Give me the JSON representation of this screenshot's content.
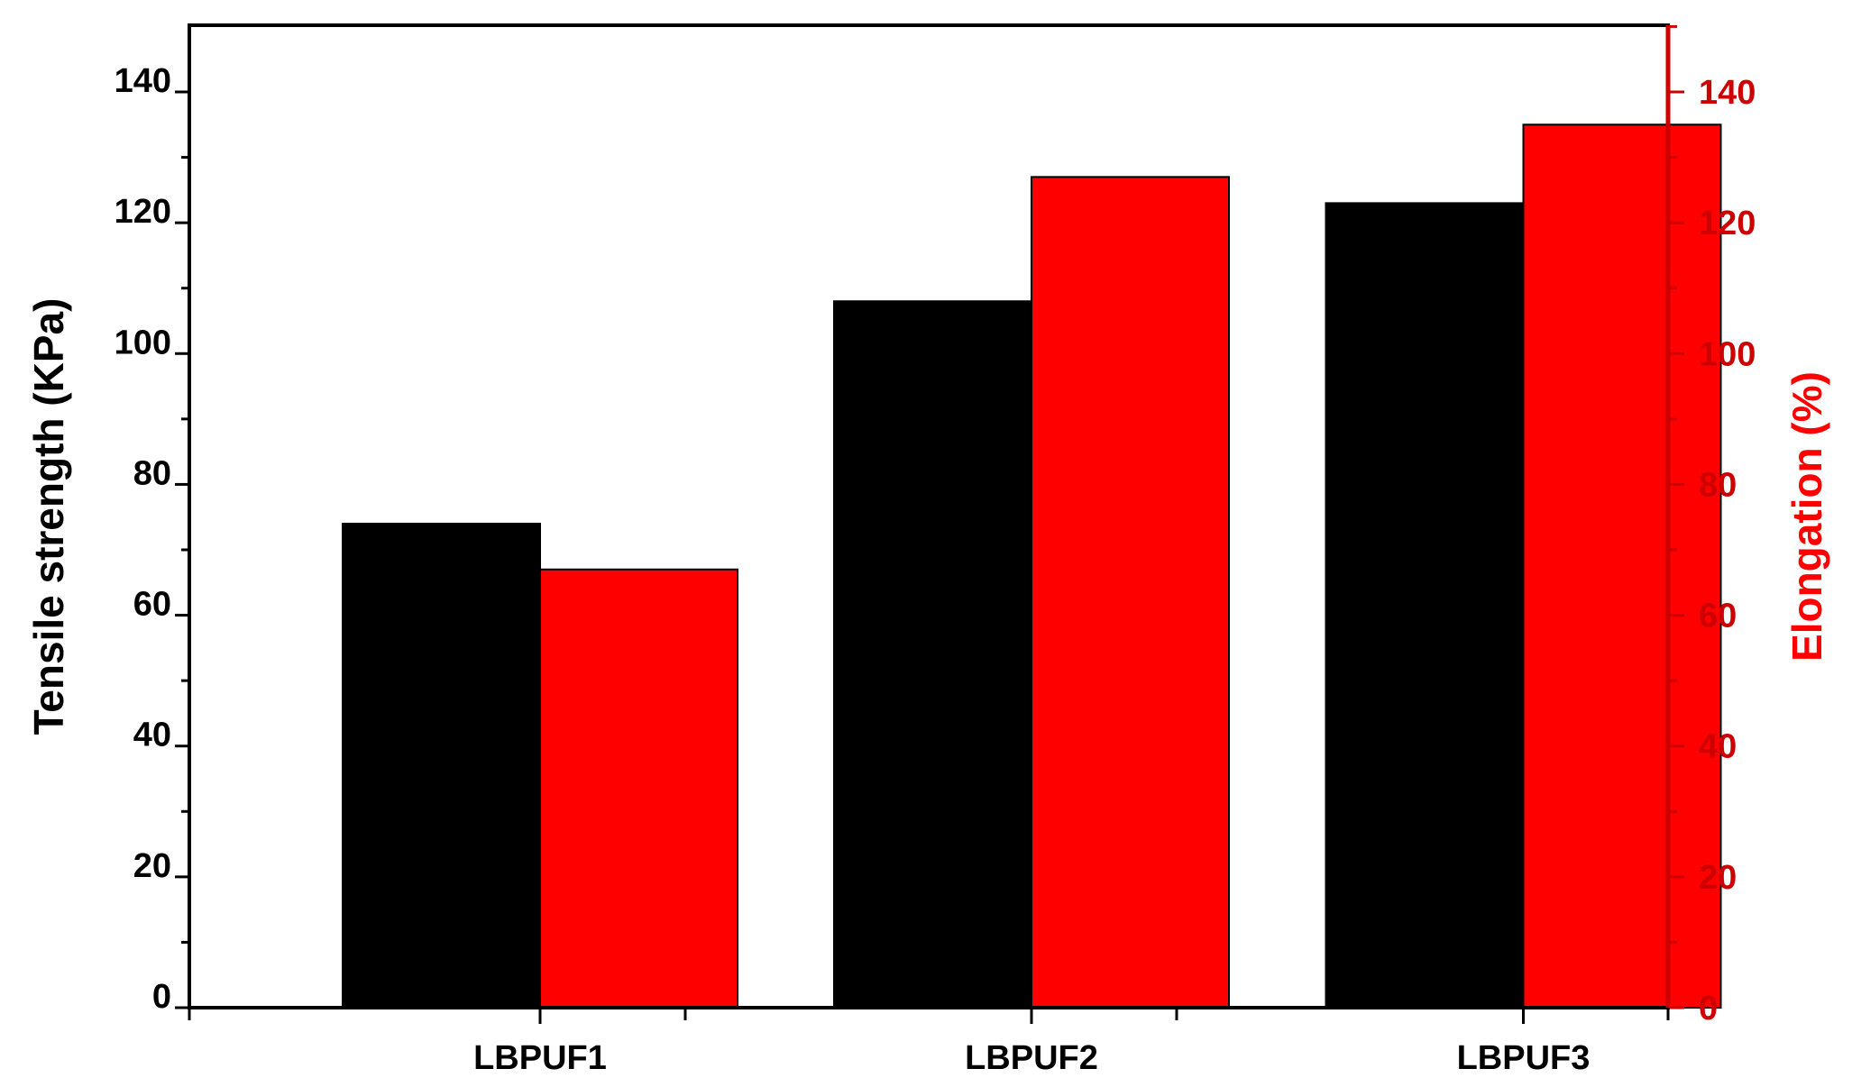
{
  "chart_data": {
    "type": "bar",
    "categories": [
      "LBPUF1",
      "LBPUF2",
      "LBPUF3"
    ],
    "series": [
      {
        "name": "",
        "axis": "left",
        "color": "#000000",
        "values": [
          74,
          108,
          123
        ]
      },
      {
        "name": "",
        "axis": "right",
        "color": "#ff0000",
        "values": [
          67,
          127,
          135
        ]
      }
    ],
    "title": "",
    "xlabel": "",
    "ylabel": "Tensile strength (KPa)",
    "y2label": "Elongation (%)",
    "ylim": [
      0,
      140
    ],
    "y2lim": [
      0,
      140
    ],
    "yticks": [
      0,
      20,
      40,
      60,
      80,
      100,
      120,
      140
    ],
    "y2ticks": [
      0,
      20,
      40,
      60,
      80,
      100,
      120,
      140
    ],
    "grid": false,
    "legend": "none",
    "left_axis_color": "#000000",
    "right_axis_color": "#cc0000"
  }
}
